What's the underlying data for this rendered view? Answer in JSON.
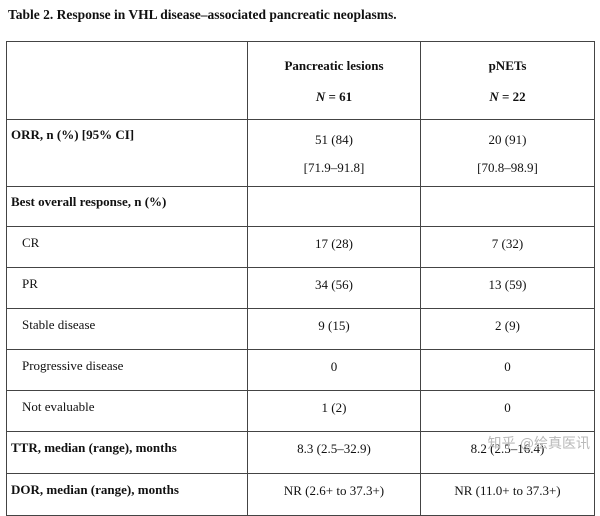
{
  "title": "Table 2. Response in VHL disease–associated pancreatic neoplasms.",
  "header": {
    "col1": {
      "name": "Pancreatic lesions",
      "n_label": "N",
      "n_value": "= 61"
    },
    "col2": {
      "name": "pNETs",
      "n_label": "N",
      "n_value": "= 22"
    }
  },
  "orr": {
    "label": "ORR, n (%) [95% CI]",
    "col1_value": "51 (84)",
    "col1_ci": "[71.9–91.8]",
    "col2_value": "20 (91)",
    "col2_ci": "[70.8–98.9]"
  },
  "best_response_label": "Best overall response, n (%)",
  "responses": [
    {
      "label": "CR",
      "col1": "17 (28)",
      "col2": "7 (32)"
    },
    {
      "label": "PR",
      "col1": "34 (56)",
      "col2": "13 (59)"
    },
    {
      "label": "Stable disease",
      "col1": "9 (15)",
      "col2": "2 (9)"
    },
    {
      "label": "Progressive disease",
      "col1": "0",
      "col2": "0"
    },
    {
      "label": "Not evaluable",
      "col1": "1 (2)",
      "col2": "0"
    }
  ],
  "ttr": {
    "label": "TTR, median (range), months",
    "col1": "8.3 (2.5–32.9)",
    "col2": "8.2 (2.5–16.4)"
  },
  "dor": {
    "label": "DOR, median (range), months",
    "col1": "NR (2.6+ to 37.3+)",
    "col2": "NR (11.0+ to 37.3+)"
  },
  "watermark": "知乎 @绘真医讯"
}
